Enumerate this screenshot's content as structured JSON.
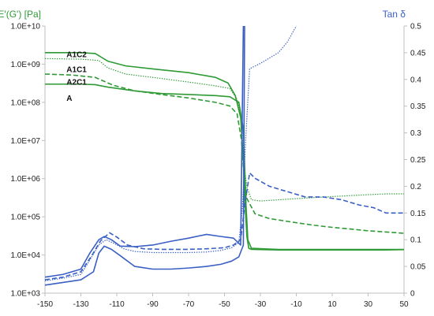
{
  "chart_data": {
    "type": "line",
    "left_axis": {
      "label": "E'(G') [Pa]",
      "scale": "log",
      "range": [
        1000,
        10000000000
      ],
      "ticks": [
        {
          "value": 10000000000,
          "label": "1.0E+10"
        },
        {
          "value": 1000000000,
          "label": "1.0E+09"
        },
        {
          "value": 100000000,
          "label": "1.0E+08"
        },
        {
          "value": 10000000,
          "label": "1.0E+07"
        },
        {
          "value": 1000000,
          "label": "1.0E+06"
        },
        {
          "value": 100000,
          "label": "1.0E+05"
        },
        {
          "value": 10000,
          "label": "1.0E+04"
        },
        {
          "value": 1000,
          "label": "1.0E+03"
        }
      ],
      "color": "#2e9a35"
    },
    "right_axis": {
      "label": "Tan δ",
      "scale": "linear",
      "range": [
        0,
        0.5
      ],
      "ticks": [
        {
          "value": 0.5,
          "label": "0.5"
        },
        {
          "value": 0.45,
          "label": "0.45"
        },
        {
          "value": 0.4,
          "label": "0.4"
        },
        {
          "value": 0.35,
          "label": "0.35"
        },
        {
          "value": 0.3,
          "label": "0.3"
        },
        {
          "value": 0.25,
          "label": "0.25"
        },
        {
          "value": 0.2,
          "label": "0.2"
        },
        {
          "value": 0.15,
          "label": "0.15"
        },
        {
          "value": 0.1,
          "label": "0.1"
        },
        {
          "value": 0.05,
          "label": "0.05"
        },
        {
          "value": 0,
          "label": "0"
        }
      ],
      "color": "#3a5fc4"
    },
    "x_axis": {
      "label": "",
      "range": [
        -150,
        50
      ],
      "ticks": [
        {
          "value": -150,
          "label": "-150"
        },
        {
          "value": -130,
          "label": "-130"
        },
        {
          "value": -110,
          "label": "-110"
        },
        {
          "value": -90,
          "label": "-90"
        },
        {
          "value": -70,
          "label": "-70"
        },
        {
          "value": -50,
          "label": "-50"
        },
        {
          "value": -30,
          "label": "-30"
        },
        {
          "value": -10,
          "label": "-10"
        },
        {
          "value": 10,
          "label": "10"
        },
        {
          "value": 30,
          "label": "30"
        },
        {
          "value": 50,
          "label": "50"
        }
      ]
    },
    "grid": false,
    "annotations": [
      {
        "text": "A1C2",
        "x": -138,
        "y": 1800000000
      },
      {
        "text": "A1C1",
        "x": -138,
        "y": 730000000
      },
      {
        "text": "A2C1",
        "x": -138,
        "y": 340000000
      },
      {
        "text": "A",
        "x": -138,
        "y": 130000000
      }
    ],
    "series": [
      {
        "axis": "left",
        "style": "solid",
        "color": "#2e9a35",
        "points": [
          [
            -150,
            2000000000
          ],
          [
            -130,
            2000000000
          ],
          [
            -122,
            1900000000
          ],
          [
            -115,
            1200000000
          ],
          [
            -105,
            900000000
          ],
          [
            -90,
            750000000
          ],
          [
            -70,
            600000000
          ],
          [
            -55,
            450000000
          ],
          [
            -48,
            320000000
          ],
          [
            -44,
            150000000
          ],
          [
            -41,
            40000000
          ],
          [
            -39.5,
            3000000
          ],
          [
            -38.5,
            200000
          ],
          [
            -37.5,
            30000
          ],
          [
            -36.5,
            15000
          ],
          [
            -35,
            14000
          ],
          [
            -20,
            13500
          ],
          [
            0,
            13500
          ],
          [
            20,
            13500
          ],
          [
            40,
            13500
          ],
          [
            50,
            13800
          ]
        ]
      },
      {
        "axis": "left",
        "style": "dotted",
        "color": "#2e9a35",
        "points": [
          [
            -150,
            1400000000
          ],
          [
            -130,
            1350000000
          ],
          [
            -120,
            1250000000
          ],
          [
            -115,
            800000000
          ],
          [
            -105,
            550000000
          ],
          [
            -90,
            450000000
          ],
          [
            -70,
            340000000
          ],
          [
            -55,
            270000000
          ],
          [
            -47,
            230000000
          ],
          [
            -43,
            120000000
          ],
          [
            -40.5,
            30000000
          ],
          [
            -39,
            2000000
          ],
          [
            -37.5,
            600000
          ],
          [
            -35,
            280000
          ],
          [
            -30,
            260000
          ],
          [
            -10,
            300000
          ],
          [
            10,
            340000
          ],
          [
            30,
            380000
          ],
          [
            40,
            400000
          ],
          [
            50,
            400000
          ]
        ]
      },
      {
        "axis": "left",
        "style": "dashed",
        "color": "#2e9a35",
        "points": [
          [
            -150,
            550000000
          ],
          [
            -135,
            520000000
          ],
          [
            -122,
            450000000
          ],
          [
            -112,
            280000000
          ],
          [
            -100,
            200000000
          ],
          [
            -85,
            160000000
          ],
          [
            -70,
            130000000
          ],
          [
            -55,
            100000000
          ],
          [
            -47,
            80000000
          ],
          [
            -43,
            50000000
          ],
          [
            -40.5,
            10000000
          ],
          [
            -39,
            1000000
          ],
          [
            -37.5,
            300000
          ],
          [
            -33,
            120000
          ],
          [
            -25,
            90000
          ],
          [
            -10,
            70000
          ],
          [
            0,
            60000
          ],
          [
            10,
            53000
          ],
          [
            20,
            48000
          ],
          [
            30,
            43000
          ],
          [
            40,
            40000
          ],
          [
            50,
            37000
          ]
        ]
      },
      {
        "axis": "left",
        "style": "solid",
        "color": "#2e9a35",
        "points": [
          [
            -150,
            300000000
          ],
          [
            -130,
            300000000
          ],
          [
            -122,
            290000000
          ],
          [
            -115,
            250000000
          ],
          [
            -100,
            200000000
          ],
          [
            -85,
            170000000
          ],
          [
            -70,
            160000000
          ],
          [
            -55,
            150000000
          ],
          [
            -47,
            140000000
          ],
          [
            -42,
            100000000
          ],
          [
            -39.5,
            20000000
          ],
          [
            -38,
            200000
          ],
          [
            -37,
            25000
          ],
          [
            -35,
            15000
          ],
          [
            -20,
            14000
          ],
          [
            0,
            14000
          ],
          [
            20,
            14000
          ],
          [
            40,
            14000
          ],
          [
            50,
            14000
          ]
        ]
      },
      {
        "axis": "right",
        "style": "solid",
        "color": "#3a5fc4",
        "points": [
          [
            -150,
            0.015
          ],
          [
            -140,
            0.02
          ],
          [
            -130,
            0.025
          ],
          [
            -123,
            0.04
          ],
          [
            -120,
            0.075
          ],
          [
            -117,
            0.088
          ],
          [
            -113,
            0.082
          ],
          [
            -108,
            0.07
          ],
          [
            -100,
            0.05
          ],
          [
            -90,
            0.045
          ],
          [
            -80,
            0.045
          ],
          [
            -70,
            0.047
          ],
          [
            -60,
            0.05
          ],
          [
            -52,
            0.054
          ],
          [
            -46,
            0.06
          ],
          [
            -42,
            0.068
          ],
          [
            -39.5,
            0.09
          ],
          [
            -38.8,
            0.5
          ]
        ]
      },
      {
        "axis": "right",
        "style": "solid",
        "color": "#3a5fc4",
        "points": [
          [
            -150,
            0.03
          ],
          [
            -140,
            0.035
          ],
          [
            -130,
            0.045
          ],
          [
            -125,
            0.075
          ],
          [
            -120,
            0.1
          ],
          [
            -117,
            0.106
          ],
          [
            -113,
            0.1
          ],
          [
            -108,
            0.088
          ],
          [
            -100,
            0.087
          ],
          [
            -90,
            0.09
          ],
          [
            -80,
            0.097
          ],
          [
            -70,
            0.103
          ],
          [
            -60,
            0.11
          ],
          [
            -52,
            0.106
          ],
          [
            -45,
            0.103
          ],
          [
            -41,
            0.09
          ],
          [
            -39.5,
            0.5
          ]
        ]
      },
      {
        "axis": "right",
        "style": "dotted",
        "color": "#3a5fc4",
        "points": [
          [
            -150,
            0.023
          ],
          [
            -140,
            0.028
          ],
          [
            -130,
            0.035
          ],
          [
            -125,
            0.062
          ],
          [
            -120,
            0.09
          ],
          [
            -116,
            0.1
          ],
          [
            -112,
            0.094
          ],
          [
            -106,
            0.083
          ],
          [
            -100,
            0.078
          ],
          [
            -90,
            0.076
          ],
          [
            -80,
            0.076
          ],
          [
            -70,
            0.076
          ],
          [
            -60,
            0.077
          ],
          [
            -52,
            0.08
          ],
          [
            -46,
            0.085
          ],
          [
            -42,
            0.095
          ],
          [
            -40,
            0.16
          ],
          [
            -38,
            0.3
          ],
          [
            -36,
            0.42
          ],
          [
            -30,
            0.43
          ],
          [
            -25,
            0.44
          ],
          [
            -20,
            0.45
          ],
          [
            -15,
            0.47
          ],
          [
            -10,
            0.5
          ]
        ]
      },
      {
        "axis": "right",
        "style": "dashed",
        "color": "#3a5fc4",
        "points": [
          [
            -150,
            0.025
          ],
          [
            -140,
            0.03
          ],
          [
            -130,
            0.04
          ],
          [
            -124,
            0.07
          ],
          [
            -119,
            0.098
          ],
          [
            -114,
            0.113
          ],
          [
            -110,
            0.105
          ],
          [
            -104,
            0.09
          ],
          [
            -95,
            0.083
          ],
          [
            -85,
            0.082
          ],
          [
            -70,
            0.082
          ],
          [
            -60,
            0.083
          ],
          [
            -50,
            0.085
          ],
          [
            -45,
            0.09
          ],
          [
            -41,
            0.1
          ],
          [
            -38.5,
            0.17
          ],
          [
            -36,
            0.225
          ],
          [
            -33,
            0.215
          ],
          [
            -25,
            0.2
          ],
          [
            -15,
            0.19
          ],
          [
            -5,
            0.18
          ],
          [
            5,
            0.18
          ],
          [
            15,
            0.175
          ],
          [
            25,
            0.165
          ],
          [
            33,
            0.16
          ],
          [
            40,
            0.15
          ],
          [
            50,
            0.15
          ]
        ]
      }
    ]
  }
}
